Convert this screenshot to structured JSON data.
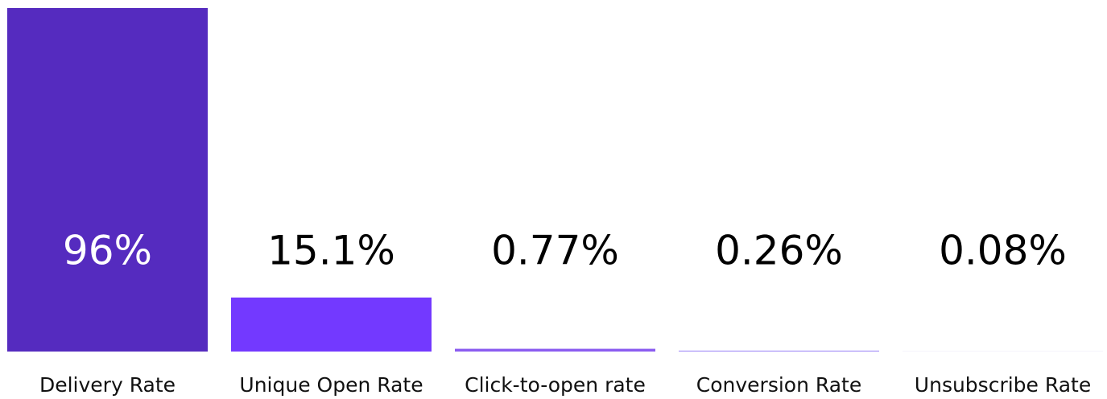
{
  "chart_data": {
    "type": "bar",
    "categories": [
      "Delivery Rate",
      "Unique Open Rate",
      "Click-to-open rate",
      "Conversion Rate",
      "Unsubscribe Rate"
    ],
    "values": [
      96,
      15.1,
      0.77,
      0.26,
      0.08
    ],
    "value_labels": [
      "96%",
      "15.1%",
      "0.77%",
      "0.26%",
      "0.08%"
    ],
    "colors": [
      "#552bbf",
      "#7339ff",
      "#8b5cf0",
      "#a590f7",
      "#e3dff5"
    ],
    "ylim": [
      0,
      96
    ]
  }
}
